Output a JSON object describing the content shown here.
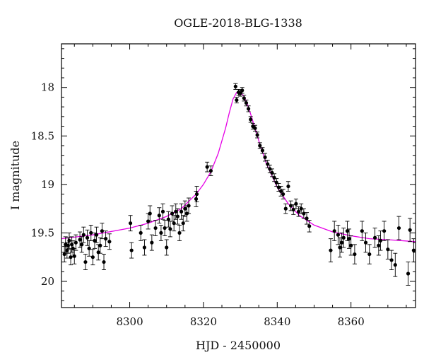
{
  "chart_data": {
    "type": "scatter",
    "title": "OGLE-2018-BLG-1338",
    "xlabel": "HJD - 2450000",
    "ylabel": "I magnitude",
    "xlim": [
      8281.5,
      8377.5
    ],
    "ylim": [
      20.27,
      17.55
    ],
    "y_inverted": true,
    "grid": false,
    "xticks": [
      8300,
      8320,
      8340,
      8360
    ],
    "xtick_labels": [
      "8300",
      "8320",
      "8340",
      "8360"
    ],
    "yticks": [
      18,
      18.5,
      19,
      19.5,
      20
    ],
    "ytick_labels": [
      "18",
      "18.5",
      "19",
      "19.5",
      "20"
    ],
    "colors": {
      "model": "#e600e6",
      "points": "#000000",
      "frame": "#000000"
    },
    "series": [
      {
        "kind": "points",
        "x": [
          8282.3,
          8282.6,
          8283.0,
          8283.3,
          8283.6,
          8284.0,
          8284.3,
          8284.6,
          8285.0,
          8285.4,
          8286.5,
          8287.0,
          8287.5,
          8288.0,
          8288.5,
          8289.0,
          8289.5,
          8290.0,
          8290.5,
          8291.0,
          8291.5,
          8292.0,
          8292.5,
          8293.0,
          8293.5,
          8294.5,
          8300.2,
          8300.5,
          8303.0,
          8304.0,
          8305.0,
          8305.5,
          8306.0,
          8307.0,
          8308.0,
          8308.5,
          8309.0,
          8309.5,
          8310.0,
          8310.5,
          8311.0,
          8311.5,
          8312.0,
          8312.5,
          8313.0,
          8313.5,
          8314.0,
          8314.5,
          8315.0,
          8315.5,
          8316.0,
          8318.0,
          8318.2,
          8321.0,
          8322.0,
          8328.7,
          8329.0,
          8329.5,
          8330.0,
          8330.5,
          8331.0,
          8331.6,
          8332.2,
          8332.8,
          8333.4,
          8334.0,
          8334.6,
          8335.3,
          8336.0,
          8336.7,
          8337.4,
          8338.0,
          8338.6,
          8339.2,
          8339.8,
          8340.4,
          8341.0,
          8341.6,
          8342.3,
          8343.0,
          8343.7,
          8344.4,
          8345.1,
          8345.8,
          8346.5,
          8347.2,
          8348.0,
          8348.7,
          8354.5,
          8355.5,
          8356.5,
          8357.0,
          8357.5,
          8358.0,
          8359.0,
          8359.5,
          8360.0,
          8361.0,
          8363.0,
          8364.0,
          8365.0,
          8366.5,
          8367.5,
          8368.0,
          8369.0,
          8370.0,
          8371.0,
          8372.0,
          8373.0,
          8375.5,
          8376.0,
          8377.0
        ],
        "y": [
          19.72,
          19.62,
          19.68,
          19.63,
          19.58,
          19.75,
          19.62,
          19.66,
          19.74,
          19.6,
          19.57,
          19.62,
          19.52,
          19.8,
          19.55,
          19.66,
          19.5,
          19.75,
          19.58,
          19.52,
          19.7,
          19.63,
          19.48,
          19.8,
          19.56,
          19.59,
          19.4,
          19.68,
          19.5,
          19.65,
          19.38,
          19.3,
          19.6,
          19.45,
          19.32,
          19.5,
          19.28,
          19.45,
          19.65,
          19.36,
          19.46,
          19.3,
          19.4,
          19.28,
          19.33,
          19.5,
          19.28,
          19.4,
          19.25,
          19.3,
          19.22,
          19.15,
          19.1,
          18.82,
          18.86,
          17.99,
          18.13,
          18.05,
          18.06,
          18.03,
          18.11,
          18.16,
          18.22,
          18.33,
          18.4,
          18.42,
          18.49,
          18.6,
          18.65,
          18.72,
          18.79,
          18.84,
          18.88,
          18.93,
          18.98,
          19.03,
          19.07,
          19.1,
          19.25,
          19.02,
          19.22,
          19.26,
          19.2,
          19.28,
          19.25,
          19.3,
          19.35,
          19.43,
          19.68,
          19.48,
          19.52,
          19.65,
          19.6,
          19.55,
          19.48,
          19.56,
          19.63,
          19.72,
          19.48,
          19.6,
          19.72,
          19.55,
          19.63,
          19.58,
          19.48,
          19.67,
          19.78,
          19.83,
          19.45,
          19.92,
          19.47,
          19.68
        ],
        "err": [
          0.08,
          0.08,
          0.08,
          0.08,
          0.08,
          0.08,
          0.08,
          0.08,
          0.08,
          0.08,
          0.08,
          0.08,
          0.08,
          0.08,
          0.08,
          0.08,
          0.08,
          0.08,
          0.08,
          0.08,
          0.08,
          0.08,
          0.08,
          0.08,
          0.08,
          0.08,
          0.08,
          0.08,
          0.08,
          0.08,
          0.08,
          0.08,
          0.08,
          0.08,
          0.08,
          0.08,
          0.08,
          0.08,
          0.08,
          0.08,
          0.08,
          0.08,
          0.08,
          0.08,
          0.08,
          0.08,
          0.08,
          0.08,
          0.08,
          0.08,
          0.08,
          0.08,
          0.08,
          0.05,
          0.05,
          0.03,
          0.03,
          0.03,
          0.03,
          0.03,
          0.03,
          0.03,
          0.03,
          0.03,
          0.03,
          0.03,
          0.03,
          0.03,
          0.03,
          0.04,
          0.04,
          0.04,
          0.04,
          0.04,
          0.04,
          0.04,
          0.05,
          0.05,
          0.05,
          0.05,
          0.05,
          0.05,
          0.05,
          0.05,
          0.05,
          0.05,
          0.06,
          0.06,
          0.12,
          0.1,
          0.1,
          0.1,
          0.1,
          0.1,
          0.1,
          0.1,
          0.1,
          0.1,
          0.1,
          0.1,
          0.1,
          0.1,
          0.1,
          0.1,
          0.1,
          0.1,
          0.1,
          0.12,
          0.12,
          0.12,
          0.12,
          0.12
        ]
      },
      {
        "kind": "model",
        "x": [
          8281.5,
          8290,
          8300,
          8305,
          8310,
          8314,
          8318,
          8320,
          8322,
          8324,
          8326,
          8327,
          8328,
          8329,
          8330,
          8331,
          8332,
          8333,
          8335,
          8337,
          8340,
          8343,
          8346,
          8350,
          8355,
          8360,
          8365,
          8370,
          8377.5
        ],
        "y": [
          19.56,
          19.52,
          19.45,
          19.4,
          19.33,
          19.25,
          19.1,
          19.0,
          18.87,
          18.68,
          18.42,
          18.26,
          18.12,
          18.05,
          18.05,
          18.09,
          18.18,
          18.3,
          18.55,
          18.78,
          19.03,
          19.2,
          19.32,
          19.42,
          19.49,
          19.53,
          19.56,
          19.57,
          19.59
        ]
      }
    ]
  }
}
